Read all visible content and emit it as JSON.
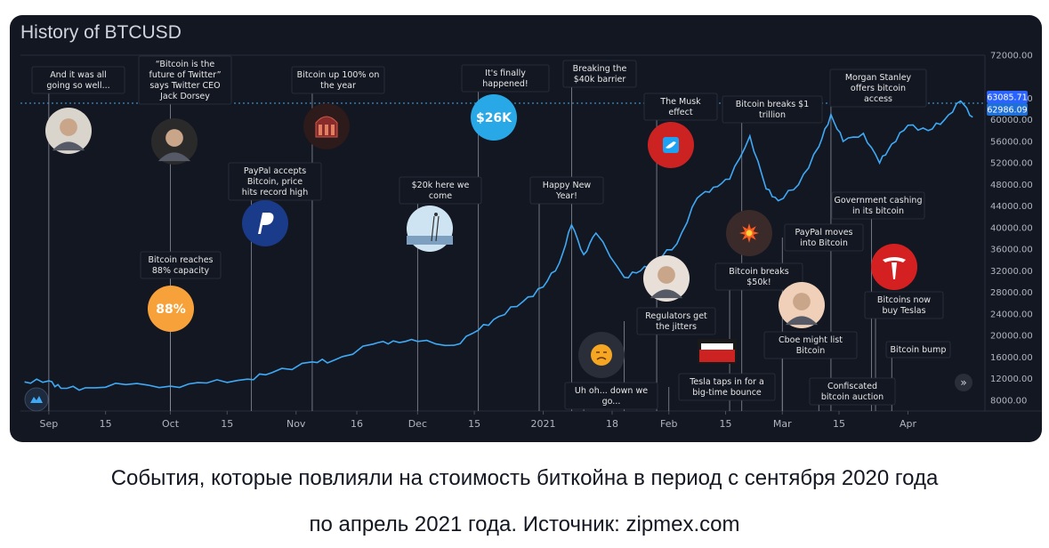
{
  "caption": {
    "line1": "События, которые повлияли на стоимость биткойна в период с сентября 2020 года",
    "line2": "по апрель 2021 года. Источник: zipmex.com"
  },
  "chart_data": {
    "type": "line",
    "title": "History of BTCUSD",
    "xlabel": "",
    "ylabel": "",
    "ylim": [
      6000,
      72000
    ],
    "yticks": [
      "72000.00",
      "64000.00",
      "60000.00",
      "56000.00",
      "52000.00",
      "48000.00",
      "44000.00",
      "40000.00",
      "36000.00",
      "32000.00",
      "28000.00",
      "24000.00",
      "20000.00",
      "16000.00",
      "12000.00",
      "8000.00"
    ],
    "xticks": [
      "Sep",
      "15",
      "Oct",
      "15",
      "Nov",
      "16",
      "Dec",
      "15",
      "2021",
      "18",
      "Feb",
      "15",
      "Mar",
      "15",
      "Apr"
    ],
    "last_price": "63085.71",
    "second_price": "62986.09",
    "series": [
      {
        "x": [
          "2020-08-26",
          "2020-09-01",
          "2020-09-04",
          "2020-09-10",
          "2020-09-20",
          "2020-10-01",
          "2020-10-10",
          "2020-10-20",
          "2020-10-26",
          "2020-11-05",
          "2020-11-10",
          "2020-11-20",
          "2020-11-25",
          "2020-12-01",
          "2020-12-10",
          "2020-12-16",
          "2020-12-21",
          "2020-12-27",
          "2021-01-01",
          "2021-01-05",
          "2021-01-08",
          "2021-01-11",
          "2021-01-14",
          "2021-01-21",
          "2021-01-25",
          "2021-01-29",
          "2021-02-03",
          "2021-02-08",
          "2021-02-12",
          "2021-02-16",
          "2021-02-21",
          "2021-02-25",
          "2021-02-28",
          "2021-03-05",
          "2021-03-10",
          "2021-03-13",
          "2021-03-16",
          "2021-03-21",
          "2021-03-25",
          "2021-03-28",
          "2021-04-01",
          "2021-04-06",
          "2021-04-10",
          "2021-04-14",
          "2021-04-17"
        ],
        "y": [
          11400,
          11600,
          10200,
          10300,
          10900,
          10600,
          11200,
          11900,
          13100,
          15100,
          15300,
          18400,
          19000,
          18900,
          18200,
          21000,
          23500,
          26300,
          29000,
          33500,
          40500,
          35000,
          39000,
          30800,
          32000,
          34000,
          37000,
          45500,
          47500,
          49000,
          57000,
          47200,
          45000,
          48000,
          55000,
          61000,
          56000,
          57500,
          52000,
          55500,
          59000,
          58000,
          60000,
          63500,
          60500
        ]
      }
    ],
    "events": [
      {
        "label": "And it was all going so well...",
        "date": "2020-09-01",
        "icon": "portrait-icon",
        "color": "#d9d4cc"
      },
      {
        "label": "“Bitcoin is the future of Twitter” says Twitter CEO Jack Dorsey",
        "date": "2020-10-01",
        "icon": "portrait-icon",
        "color": "#2a2a2a"
      },
      {
        "label": "Bitcoin reaches 88% capacity",
        "date": "2020-10-01",
        "icon": "badge-icon",
        "color": "#f7a13a",
        "badge": "88%"
      },
      {
        "label": "PayPal accepts Bitcoin, price hits record high",
        "date": "2020-10-21",
        "icon": "paypal-icon",
        "color": "#ffffff"
      },
      {
        "label": "Bitcoin up 100% on the year",
        "date": "2020-11-05",
        "icon": "building-icon",
        "color": "#2d1a1a"
      },
      {
        "label": "$20k here we come",
        "date": "2020-12-01",
        "icon": "ladder-icon",
        "color": "#cfe4f2"
      },
      {
        "label": "It's finally happened!",
        "date": "2020-12-16",
        "icon": "badge-icon",
        "color": "#29a8e8",
        "badge": "$26K"
      },
      {
        "label": "Happy New Year!",
        "date": "2020-12-31",
        "icon": "",
        "color": ""
      },
      {
        "label": "Breaking the $40k barrier",
        "date": "2021-01-08",
        "icon": "",
        "color": ""
      },
      {
        "label": "Uh oh... down we go...",
        "date": "2021-01-11",
        "icon": "sad-face-icon",
        "color": "#2a2e39"
      },
      {
        "label": "Regulators get the jitters",
        "date": "2021-01-21",
        "icon": "portrait-icon",
        "color": "#e8e0d8"
      },
      {
        "label": "The Musk effect",
        "date": "2021-01-29",
        "icon": "twitter-icon",
        "color": "#cc2222"
      },
      {
        "label": "Tesla taps in for a big-time bounce",
        "date": "2021-02-01",
        "icon": "tesla-wordmark-icon",
        "color": "#cc2222"
      },
      {
        "label": "Bitcoin breaks $50k!",
        "date": "2021-02-16",
        "icon": "explosion-icon",
        "color": "#3a2a2a"
      },
      {
        "label": "Bitcoin breaks $1 trillion",
        "date": "2021-02-19",
        "icon": "",
        "color": ""
      },
      {
        "label": "PayPal moves into Bitcoin",
        "date": "2021-03-01",
        "icon": "",
        "color": ""
      },
      {
        "label": "Cboe might list Bitcoin",
        "date": "2021-03-01",
        "icon": "portrait-icon",
        "color": "#f0d0b8"
      },
      {
        "label": "Morgan Stanley offers bitcoin access",
        "date": "2021-03-13",
        "icon": "",
        "color": ""
      },
      {
        "label": "Confiscated bitcoin auction",
        "date": "2021-03-10",
        "icon": "",
        "color": ""
      },
      {
        "label": "Government cashing in its bitcoin",
        "date": "2021-03-23",
        "icon": "",
        "color": ""
      },
      {
        "label": "Bitcoins now buy Teslas",
        "date": "2021-03-24",
        "icon": "tesla-icon",
        "color": "#d42020"
      },
      {
        "label": "Bitcoin bump",
        "date": "2021-03-28",
        "icon": "",
        "color": ""
      }
    ],
    "grid": false,
    "colors": {
      "line": "#3fa9f5",
      "background": "#131722",
      "price_tag": "#2962ff"
    }
  }
}
